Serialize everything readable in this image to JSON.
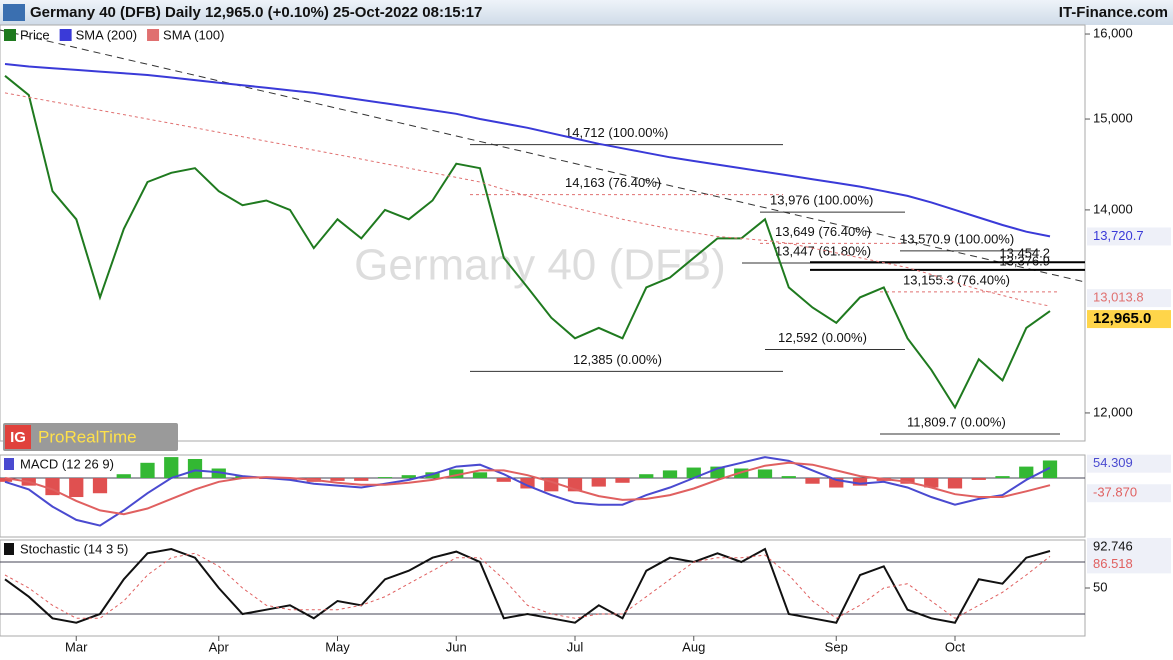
{
  "header": {
    "title": "Germany 40 (DFB) Daily 12,965.0 (+0.10%) 25-Oct-2022 08:15:17",
    "source": "IT-Finance.com"
  },
  "badge": {
    "logo": "IG",
    "text": "ProRealTime"
  },
  "chart_data": [
    {
      "type": "line",
      "watermark": "Germany 40 (DFB)",
      "log_scale": true,
      "categories": [
        null,
        null,
        null,
        "Mar",
        null,
        null,
        null,
        null,
        null,
        "Apr",
        null,
        null,
        null,
        null,
        "May",
        null,
        null,
        null,
        null,
        "Jun",
        null,
        null,
        null,
        null,
        "Jul",
        null,
        null,
        null,
        null,
        "Aug",
        null,
        null,
        null,
        null,
        null,
        "Sep",
        null,
        null,
        null,
        null,
        "Oct",
        null,
        null,
        null,
        null
      ],
      "ylim": [
        11756,
        16110
      ],
      "yticks": [
        {
          "value": 12000,
          "label": "12,000"
        },
        {
          "value": 14000,
          "label": "14,000"
        },
        {
          "value": 15000,
          "label": "15,000"
        },
        {
          "value": 16000,
          "label": "16,000"
        }
      ],
      "series": [
        {
          "name": "Price",
          "color": "#1f7a1f",
          "last_label": "12,965.0",
          "values": [
            15500,
            15275,
            14200,
            13900,
            13100,
            13800,
            14300,
            14400,
            14450,
            14200,
            14050,
            14100,
            14000,
            13600,
            13900,
            13700,
            14000,
            13900,
            14100,
            14500,
            14450,
            13500,
            13200,
            12900,
            12700,
            12800,
            12700,
            13200,
            13300,
            13500,
            13700,
            13700,
            13900,
            13200,
            13000,
            12850,
            13100,
            13200,
            12700,
            12400,
            12050,
            12500,
            12300,
            12800,
            12965
          ]
        },
        {
          "name": "SMA (200)",
          "color": "#3a3ad8",
          "last_label": "13,720.7",
          "values": [
            15640,
            15610,
            15590,
            15570,
            15550,
            15530,
            15510,
            15480,
            15450,
            15420,
            15390,
            15360,
            15330,
            15300,
            15260,
            15220,
            15180,
            15140,
            15100,
            15060,
            15000,
            14950,
            14900,
            14840,
            14780,
            14720,
            14670,
            14620,
            14570,
            14530,
            14490,
            14450,
            14410,
            14370,
            14330,
            14290,
            14250,
            14200,
            14150,
            14080,
            14000,
            13920,
            13840,
            13770,
            13720.7
          ]
        },
        {
          "name": "SMA (100)",
          "color": "#e07070",
          "dashed": true,
          "last_label": "13,013.8",
          "values": [
            15300,
            15250,
            15200,
            15150,
            15100,
            15050,
            15000,
            14950,
            14900,
            14850,
            14800,
            14750,
            14700,
            14650,
            14600,
            14550,
            14500,
            14450,
            14400,
            14350,
            14300,
            14220,
            14150,
            14080,
            14020,
            13960,
            13900,
            13850,
            13800,
            13760,
            13720,
            13700,
            13680,
            13650,
            13600,
            13550,
            13500,
            13450,
            13400,
            13330,
            13250,
            13180,
            13120,
            13060,
            13013.8
          ]
        }
      ],
      "annotations": [
        {
          "level": 14712,
          "label": "14,712 (100.00%)",
          "color": "#333333"
        },
        {
          "level": 14163,
          "label": "14,163 (76.40%)",
          "color": "#e07070",
          "dashed": true
        },
        {
          "level": 13976,
          "label": "13,976 (100.00%)",
          "color": "#333333"
        },
        {
          "level": 13649,
          "label": "13,649 (76.40%)",
          "color": "#e07070",
          "dashed": true
        },
        {
          "level": 13447,
          "label": "13,447 (61.80%)",
          "color": "#333333"
        },
        {
          "level": 12385,
          "label": "12,385 (0.00%)",
          "color": "#333333"
        },
        {
          "level": 13570.9,
          "label": "13,570.9 (100.00%)",
          "color": "#333333"
        },
        {
          "level": 13454.2,
          "label": "13,454.2",
          "color": "#000000"
        },
        {
          "level": 13376.9,
          "label": "13,376.9",
          "color": "#000000"
        },
        {
          "level": 13155.3,
          "label": "13,155.3 (76.40%)",
          "color": "#e07070",
          "dashed": true
        },
        {
          "level": 12592,
          "label": "12,592 (0.00%)",
          "color": "#333333"
        },
        {
          "level": 11809.7,
          "label": "11,809.7 (0.00%)",
          "color": "#333333"
        }
      ]
    },
    {
      "type": "line",
      "title": "MACD (12 26 9)",
      "ylim": [
        -310,
        121
      ],
      "histogram": {
        "color": "#33b833",
        "negative_color": "#e05050",
        "values": [
          -20,
          -40,
          -90,
          -100,
          -80,
          20,
          80,
          110,
          100,
          50,
          10,
          -5,
          -10,
          -20,
          -15,
          -15,
          5,
          15,
          30,
          45,
          30,
          -20,
          -55,
          -70,
          -70,
          -45,
          -25,
          20,
          40,
          55,
          60,
          50,
          45,
          10,
          -30,
          -50,
          -40,
          -15,
          -30,
          -50,
          -55,
          -10,
          10,
          60,
          92.18
        ]
      },
      "series": [
        {
          "color": "#4a4ad0",
          "last_label": "54.309",
          "values": [
            -20,
            -60,
            -150,
            -220,
            -250,
            -170,
            -80,
            0,
            40,
            30,
            10,
            0,
            -10,
            -30,
            -40,
            -50,
            -30,
            -10,
            20,
            60,
            70,
            20,
            -40,
            -90,
            -130,
            -140,
            -140,
            -90,
            -50,
            0,
            50,
            80,
            110,
            90,
            40,
            -10,
            -30,
            -20,
            -50,
            -100,
            -140,
            -110,
            -90,
            -10,
            54.309
          ]
        },
        {
          "color": "#e06060",
          "last_label": "-37.870",
          "values": [
            0,
            -20,
            -60,
            -120,
            -170,
            -190,
            -160,
            -110,
            -60,
            -20,
            0,
            5,
            0,
            -10,
            -25,
            -35,
            -35,
            -25,
            -10,
            15,
            40,
            40,
            15,
            -20,
            -60,
            -95,
            -115,
            -110,
            -90,
            -55,
            -10,
            30,
            65,
            80,
            70,
            40,
            10,
            -5,
            -20,
            -50,
            -85,
            -100,
            -100,
            -70,
            -37.87
          ]
        }
      ]
    },
    {
      "type": "line",
      "title": "Stochastic (14 3 5)",
      "ylim": [
        -5.4,
        105.4
      ],
      "yticks": [
        50
      ],
      "hlines": [
        20,
        80
      ],
      "series": [
        {
          "color": "#111111",
          "last_label": "92.746",
          "values": [
            60,
            40,
            15,
            10,
            20,
            60,
            90,
            95,
            85,
            50,
            20,
            25,
            30,
            15,
            35,
            30,
            60,
            70,
            85,
            92,
            80,
            15,
            20,
            15,
            10,
            30,
            15,
            70,
            85,
            80,
            90,
            80,
            95,
            20,
            15,
            10,
            65,
            75,
            25,
            15,
            10,
            60,
            55,
            85,
            92.746
          ]
        },
        {
          "color": "#e06060",
          "dashed": true,
          "last_label": "86.518",
          "values": [
            65,
            50,
            30,
            15,
            15,
            35,
            65,
            85,
            90,
            75,
            50,
            30,
            25,
            25,
            25,
            30,
            40,
            55,
            70,
            85,
            85,
            60,
            30,
            20,
            15,
            20,
            20,
            40,
            60,
            80,
            85,
            85,
            88,
            65,
            35,
            15,
            30,
            50,
            55,
            35,
            15,
            30,
            45,
            65,
            86.518
          ]
        }
      ]
    }
  ]
}
